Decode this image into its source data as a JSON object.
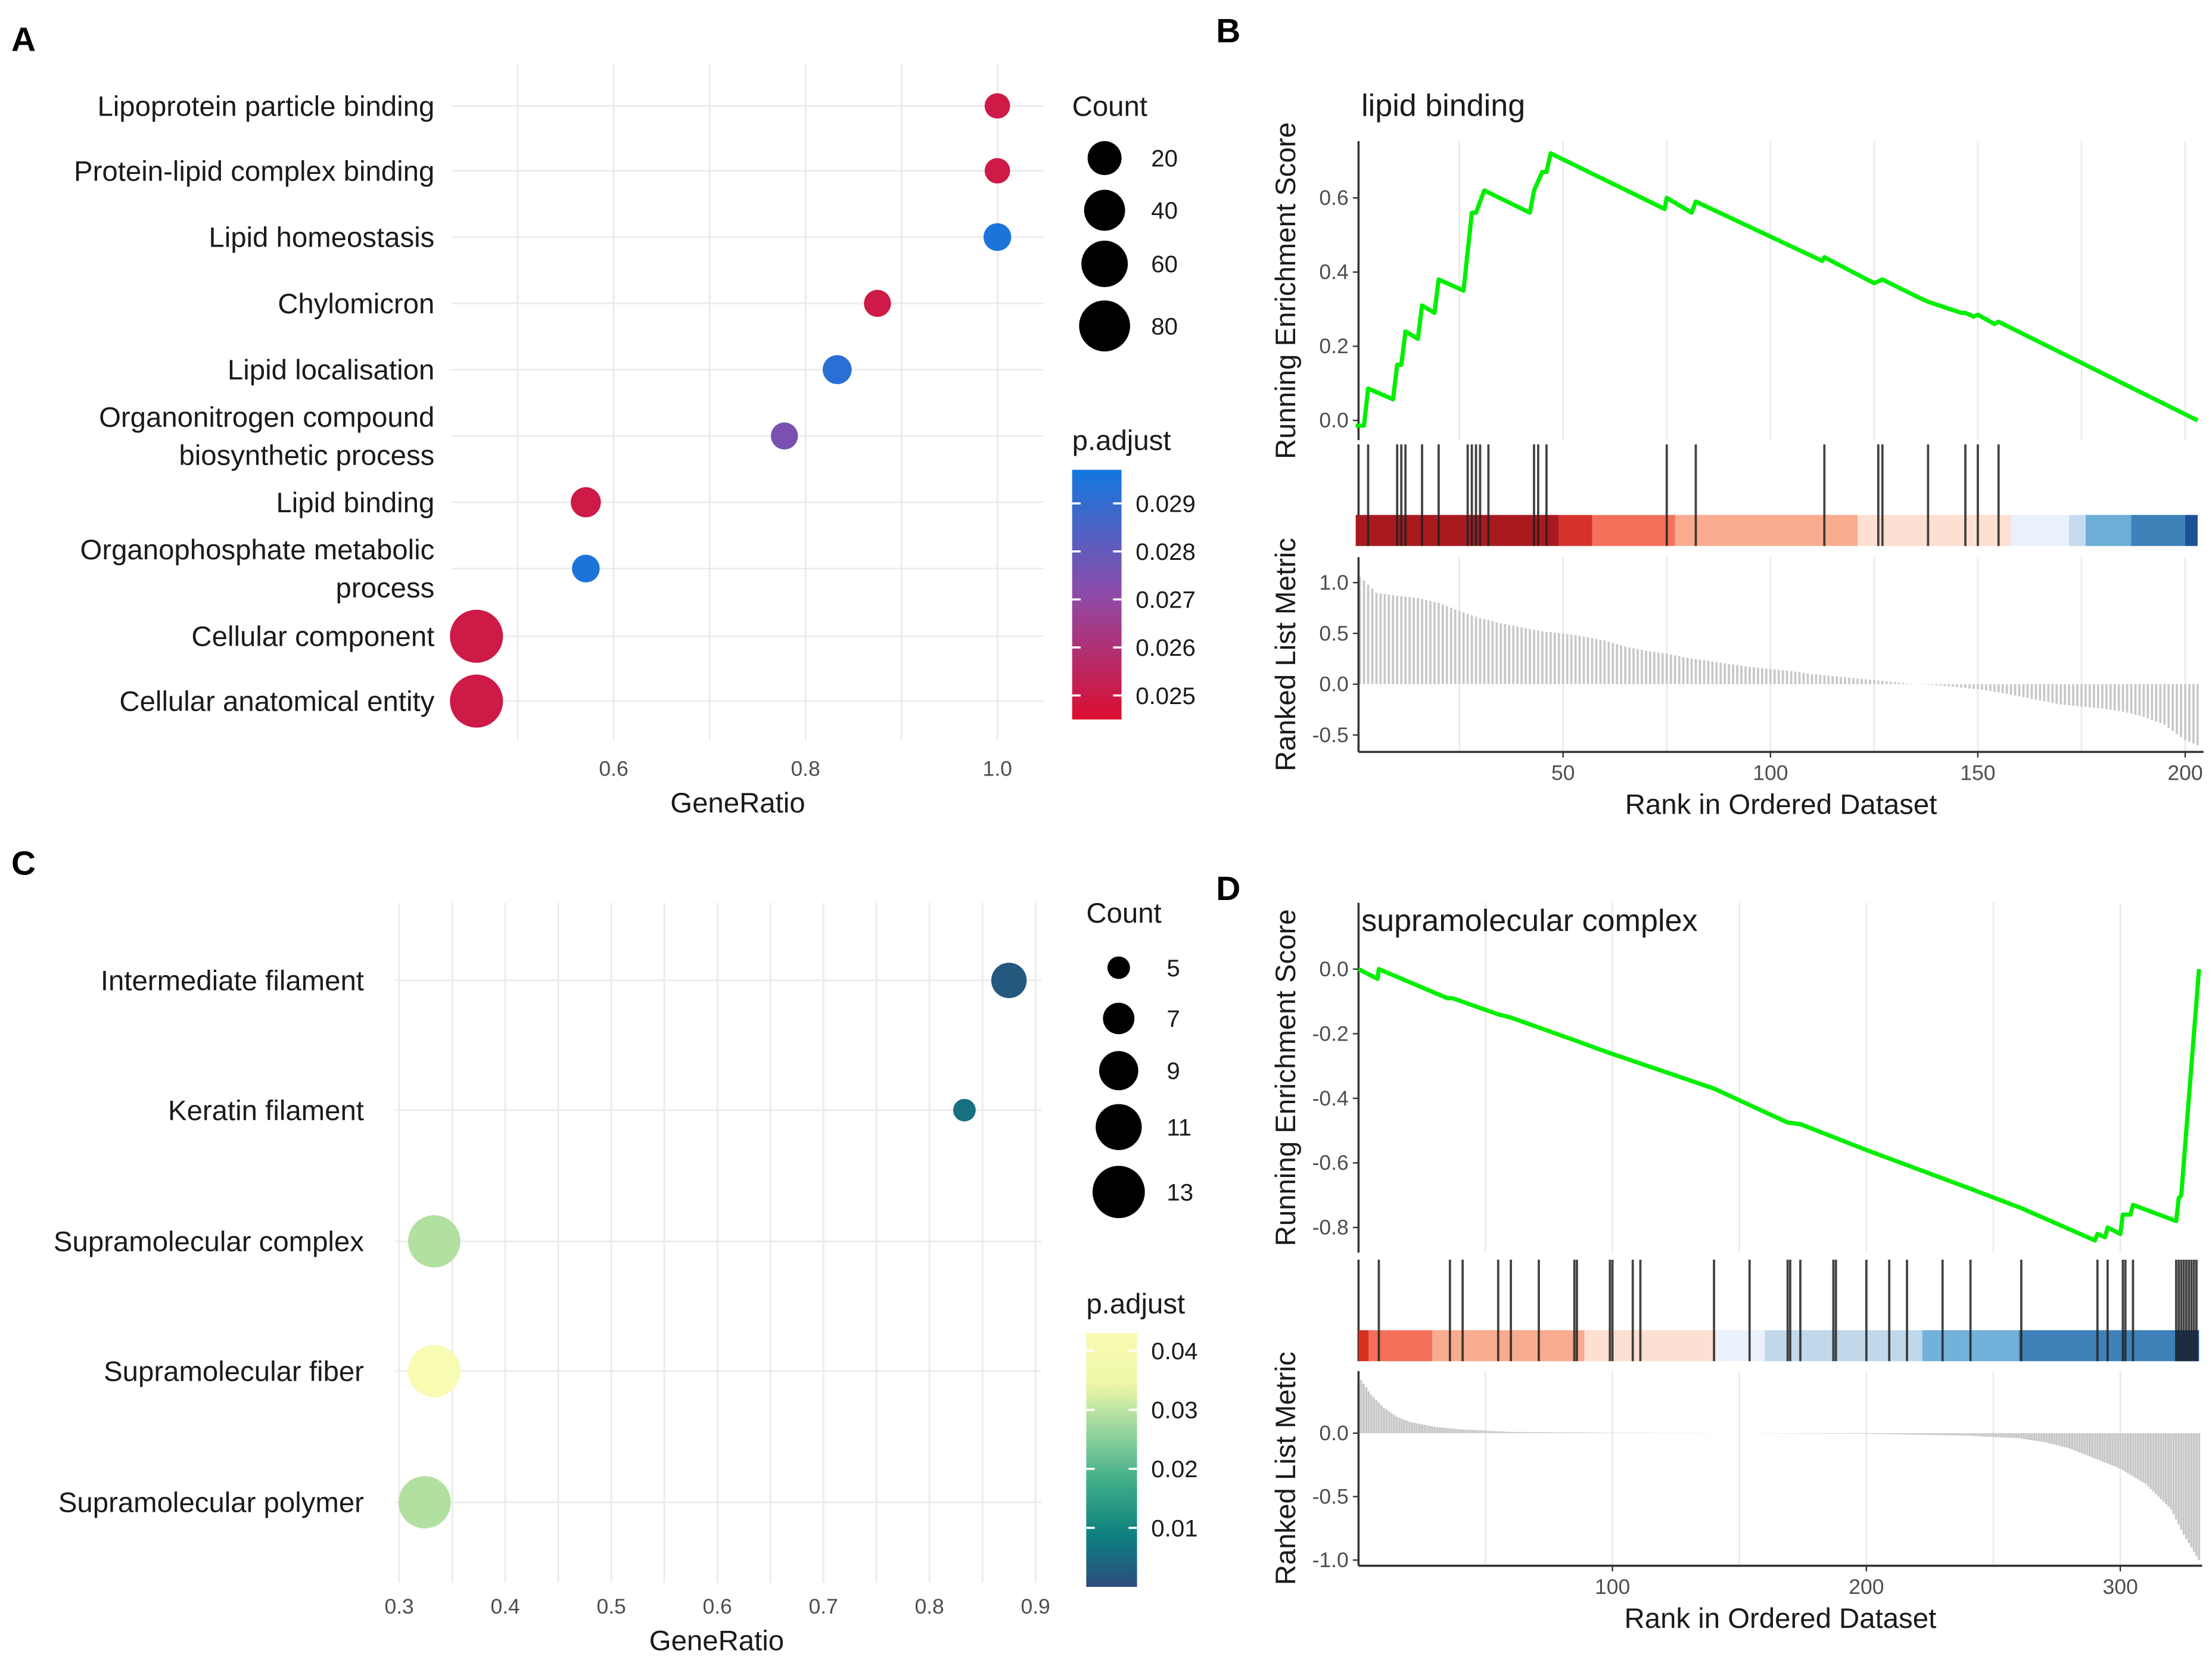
{
  "panel_letters": {
    "A": "A",
    "B": "B",
    "C": "C",
    "D": "D"
  },
  "chart_data": [
    {
      "panel": "A",
      "type": "scatter",
      "xlabel": "GeneRatio",
      "xlim": [
        0.43,
        1.05
      ],
      "xticks": [
        0.6,
        0.8,
        1.0
      ],
      "xtick_labels": [
        "0.6",
        "0.8",
        "1.0"
      ],
      "grid": true,
      "categories": [
        [
          "Lipoprotein particle binding"
        ],
        [
          "Protein-lipid complex binding"
        ],
        [
          "Lipid homeostasis"
        ],
        [
          "Chylomicron"
        ],
        [
          "Lipid localisation"
        ],
        [
          "Organonitrogen compound",
          "biosynthetic process"
        ],
        [
          "Lipid binding"
        ],
        [
          "Organophosphate metabolic",
          "process"
        ],
        [
          "Cellular component"
        ],
        [
          "Cellular anatomical entity"
        ]
      ],
      "gene_ratio": [
        1.0,
        1.0,
        1.0,
        0.875,
        0.833,
        0.778,
        0.571,
        0.571,
        0.457,
        0.457
      ],
      "count": [
        5,
        5,
        8,
        7,
        10,
        7,
        12,
        8,
        90,
        90
      ],
      "p_adjust": [
        0.025,
        0.025,
        0.0295,
        0.025,
        0.0292,
        0.0275,
        0.025,
        0.0295,
        0.025,
        0.025
      ],
      "size_legend": {
        "title": "Count",
        "values": [
          20,
          40,
          60,
          80
        ],
        "labels": [
          "20",
          "40",
          "60",
          "80"
        ]
      },
      "color_legend": {
        "title": "p.adjust",
        "range": [
          0.0245,
          0.0297
        ],
        "colors": [
          "#dc0e2f",
          "#8e4aa8",
          "#1278de"
        ],
        "ticks": [
          0.029,
          0.028,
          0.027,
          0.026,
          0.025
        ],
        "tick_labels": [
          "0.029",
          "0.028",
          "0.027",
          "0.026",
          "0.025"
        ]
      }
    },
    {
      "panel": "B",
      "type": "line",
      "title": "lipid binding",
      "ylabel_es": "Running Enrichment Score",
      "ylabel_metric": "Ranked List Metric",
      "xlabel": "Rank in Ordered Dataset",
      "x_max": 203,
      "xticks": [
        50,
        100,
        150,
        200
      ],
      "xtick_labels": [
        "50",
        "100",
        "150",
        "200"
      ],
      "x_minor": [
        25,
        75,
        125,
        175
      ],
      "es_ticks": [
        0.0,
        0.2,
        0.4,
        0.6
      ],
      "es_tick_labels": [
        "0.0",
        "0.2",
        "0.4",
        "0.6"
      ],
      "metric_ticks": [
        1.0,
        0.5,
        0.0,
        -0.5
      ],
      "metric_tick_labels": [
        "1.0",
        "0.5",
        "0.0",
        "-0.5"
      ],
      "es_line_color": "#00ee00",
      "es_points": [
        [
          0,
          -0.014
        ],
        [
          2,
          -0.014
        ],
        [
          3,
          0.086
        ],
        [
          9,
          0.057
        ],
        [
          10,
          0.15
        ],
        [
          11,
          0.15
        ],
        [
          12,
          0.24
        ],
        [
          15,
          0.22
        ],
        [
          16,
          0.31
        ],
        [
          19,
          0.29
        ],
        [
          20,
          0.38
        ],
        [
          26,
          0.35
        ],
        [
          28,
          0.56
        ],
        [
          29,
          0.56
        ],
        [
          31,
          0.62
        ],
        [
          42,
          0.56
        ],
        [
          43,
          0.62
        ],
        [
          45,
          0.67
        ],
        [
          46,
          0.67
        ],
        [
          47,
          0.72
        ],
        [
          74.5,
          0.57
        ],
        [
          75,
          0.6
        ],
        [
          81,
          0.56
        ],
        [
          82,
          0.59
        ],
        [
          112.5,
          0.43
        ],
        [
          113,
          0.44
        ],
        [
          125,
          0.37
        ],
        [
          127,
          0.38
        ],
        [
          136,
          0.33
        ],
        [
          138,
          0.32
        ],
        [
          146,
          0.29
        ],
        [
          147,
          0.29
        ],
        [
          149,
          0.28
        ],
        [
          150,
          0.285
        ],
        [
          154,
          0.26
        ],
        [
          155,
          0.266
        ],
        [
          203,
          0.0
        ]
      ],
      "hits": [
        3,
        10,
        11,
        12,
        16,
        20,
        27,
        28,
        29,
        30,
        32,
        43,
        44,
        46,
        75,
        82,
        113,
        126,
        127,
        138,
        147,
        150,
        155
      ],
      "band": [
        [
          0,
          49,
          "#a91a1f"
        ],
        [
          49,
          57,
          "#d6312b"
        ],
        [
          57,
          77,
          "#f4705a"
        ],
        [
          77,
          121,
          "#f8ab8f"
        ],
        [
          121,
          158,
          "#fde0d2"
        ],
        [
          158,
          172,
          "#eaf1fa"
        ],
        [
          172,
          176,
          "#c6dbef"
        ],
        [
          176,
          187,
          "#6baed6"
        ],
        [
          187,
          200,
          "#3f81b9"
        ],
        [
          200,
          203,
          "#1d4f96"
        ]
      ],
      "metric": [
        [
          0,
          1.1
        ],
        [
          5,
          0.9
        ],
        [
          10,
          0.87
        ],
        [
          15,
          0.85
        ],
        [
          20,
          0.8
        ],
        [
          25,
          0.72
        ],
        [
          30,
          0.65
        ],
        [
          35,
          0.6
        ],
        [
          40,
          0.56
        ],
        [
          45,
          0.52
        ],
        [
          50,
          0.5
        ],
        [
          55,
          0.47
        ],
        [
          60,
          0.43
        ],
        [
          65,
          0.37
        ],
        [
          70,
          0.33
        ],
        [
          75,
          0.3
        ],
        [
          80,
          0.26
        ],
        [
          85,
          0.23
        ],
        [
          90,
          0.2
        ],
        [
          95,
          0.17
        ],
        [
          100,
          0.15
        ],
        [
          105,
          0.13
        ],
        [
          110,
          0.1
        ],
        [
          115,
          0.08
        ],
        [
          120,
          0.06
        ],
        [
          125,
          0.04
        ],
        [
          130,
          0.02
        ],
        [
          135,
          0.0
        ],
        [
          140,
          -0.01
        ],
        [
          145,
          -0.03
        ],
        [
          150,
          -0.05
        ],
        [
          155,
          -0.08
        ],
        [
          160,
          -0.12
        ],
        [
          165,
          -0.16
        ],
        [
          170,
          -0.2
        ],
        [
          175,
          -0.22
        ],
        [
          180,
          -0.24
        ],
        [
          185,
          -0.27
        ],
        [
          190,
          -0.32
        ],
        [
          195,
          -0.4
        ],
        [
          200,
          -0.55
        ],
        [
          203,
          -0.6
        ]
      ]
    },
    {
      "panel": "C",
      "type": "scatter",
      "xlabel": "GeneRatio",
      "xlim": [
        0.3,
        0.9
      ],
      "xticks": [
        0.3,
        0.4,
        0.5,
        0.6,
        0.7,
        0.8,
        0.9
      ],
      "xtick_labels": [
        "0.3",
        "0.4",
        "0.5",
        "0.6",
        "0.7",
        "0.8",
        "0.9"
      ],
      "grid": true,
      "categories": [
        [
          "Intermediate filament"
        ],
        [
          "Keratin filament"
        ],
        [
          "Supramolecular complex"
        ],
        [
          "Supramolecular fiber"
        ],
        [
          "Supramolecular polymer"
        ]
      ],
      "gene_ratio": [
        0.875,
        0.833,
        0.333,
        0.333,
        0.324
      ],
      "count": [
        8,
        5,
        13,
        13,
        13
      ],
      "p_adjust": [
        0.002,
        0.006,
        0.029,
        0.043,
        0.029
      ],
      "size_legend": {
        "title": "Count",
        "values": [
          5,
          7,
          9,
          11,
          13
        ],
        "labels": [
          "5",
          "7",
          "9",
          "11",
          "13"
        ]
      },
      "color_legend": {
        "title": "p.adjust",
        "range": [
          0.0,
          0.043
        ],
        "colors": [
          "#2b4c7e",
          "#0e8080",
          "#3aaa86",
          "#8fd29c",
          "#eef7a8",
          "#f8fbb2"
        ],
        "ticks": [
          0.04,
          0.03,
          0.02,
          0.01
        ],
        "tick_labels": [
          "0.04",
          "0.03",
          "0.02",
          "0.01"
        ]
      }
    },
    {
      "panel": "D",
      "type": "line",
      "title": "supramolecular complex",
      "ylabel_es": "Running Enrichment Score",
      "ylabel_metric": "Ranked List Metric",
      "xlabel": "Rank in Ordered Dataset",
      "x_max": 331,
      "xticks": [
        100,
        200,
        300
      ],
      "xtick_labels": [
        "100",
        "200",
        "300"
      ],
      "x_minor": [
        50,
        150,
        250
      ],
      "es_ticks": [
        0.0,
        -0.2,
        -0.4,
        -0.6,
        -0.8
      ],
      "es_tick_labels": [
        "0.0",
        "-0.2",
        "-0.4",
        "-0.6",
        "-0.8"
      ],
      "metric_ticks": [
        0.0,
        -0.5,
        -1.0
      ],
      "metric_tick_labels": [
        "0.0",
        "-0.5",
        "-1.0"
      ],
      "es_line_color": "#00ee00",
      "es_points": [
        [
          0,
          0.0
        ],
        [
          7.5,
          -0.03
        ],
        [
          8,
          0.0
        ],
        [
          35,
          -0.09
        ],
        [
          37,
          -0.09
        ],
        [
          55,
          -0.14
        ],
        [
          60,
          -0.15
        ],
        [
          85,
          -0.22
        ],
        [
          99,
          -0.26
        ],
        [
          140,
          -0.37
        ],
        [
          169,
          -0.475
        ],
        [
          174,
          -0.48
        ],
        [
          200,
          -0.56
        ],
        [
          241,
          -0.68
        ],
        [
          261,
          -0.74
        ],
        [
          290,
          -0.84
        ],
        [
          291,
          -0.82
        ],
        [
          294,
          -0.83
        ],
        [
          295,
          -0.8
        ],
        [
          300,
          -0.82
        ],
        [
          301,
          -0.76
        ],
        [
          304,
          -0.76
        ],
        [
          305,
          -0.73
        ],
        [
          322,
          -0.78
        ],
        [
          323,
          -0.71
        ],
        [
          324,
          -0.7
        ],
        [
          331,
          0.0
        ]
      ],
      "hits": [
        8,
        36,
        41,
        55,
        60,
        71,
        85,
        86,
        99,
        100,
        108,
        111,
        140,
        154,
        169,
        170,
        174,
        187,
        188,
        200,
        209,
        216,
        230,
        241,
        261,
        291,
        295,
        301,
        302,
        305,
        322,
        323,
        324,
        325,
        326,
        327,
        328,
        329,
        330
      ],
      "band": [
        [
          0,
          4,
          "#d7301f"
        ],
        [
          4,
          29,
          "#f4705a"
        ],
        [
          29,
          89,
          "#f8ab8f"
        ],
        [
          89,
          141,
          "#fde0d2"
        ],
        [
          141,
          160,
          "#eaf1fa"
        ],
        [
          160,
          222,
          "#c0d8ea"
        ],
        [
          222,
          260,
          "#72b1da"
        ],
        [
          260,
          322,
          "#3f81b9"
        ],
        [
          322,
          331,
          "#14498f"
        ]
      ],
      "metric": [
        [
          0,
          0.45
        ],
        [
          5,
          0.3
        ],
        [
          10,
          0.2
        ],
        [
          15,
          0.13
        ],
        [
          20,
          0.09
        ],
        [
          30,
          0.05
        ],
        [
          40,
          0.03
        ],
        [
          60,
          0.01
        ],
        [
          100,
          0.003
        ],
        [
          150,
          0.0
        ],
        [
          200,
          -0.005
        ],
        [
          240,
          -0.02
        ],
        [
          260,
          -0.04
        ],
        [
          270,
          -0.07
        ],
        [
          280,
          -0.12
        ],
        [
          290,
          -0.2
        ],
        [
          300,
          -0.28
        ],
        [
          310,
          -0.4
        ],
        [
          320,
          -0.6
        ],
        [
          325,
          -0.8
        ],
        [
          331,
          -1.0
        ]
      ]
    }
  ]
}
